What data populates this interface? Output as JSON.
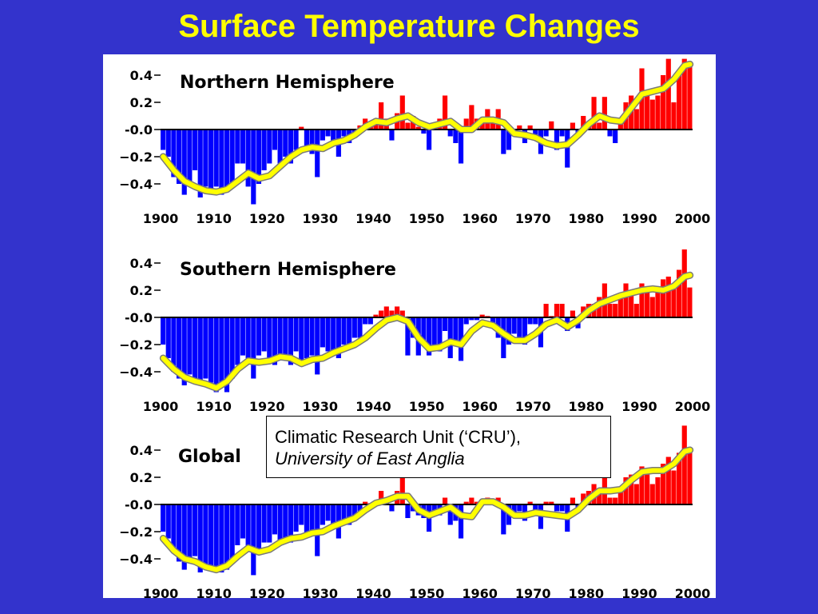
{
  "slide": {
    "title": "Surface Temperature Changes",
    "background_color": "#3333cc",
    "title_color": "#ffff00"
  },
  "credit": {
    "line1": "Climatic Research Unit (‘CRU’),",
    "line2": "University of East Anglia"
  },
  "colors": {
    "positive_bar": "#ff0000",
    "negative_bar": "#0000ff",
    "smooth_line": "#ffff00",
    "smooth_line_outline": "#7a7a7a"
  },
  "chart_data": [
    {
      "type": "bar",
      "title": "Northern Hemisphere",
      "xlabel": "",
      "ylabel": "",
      "xlim": [
        1900,
        2000
      ],
      "ylim": [
        -0.55,
        0.55
      ],
      "x_ticks": [
        "1900",
        "1910",
        "1920",
        "1930",
        "1940",
        "1950",
        "1960",
        "1970",
        "1980",
        "1990",
        "2000"
      ],
      "y_ticks": [
        "0.4",
        "0.2",
        "-0.0",
        "−0.2",
        "−0.4"
      ],
      "y_tick_values": [
        0.4,
        0.2,
        0.0,
        -0.2,
        -0.4
      ],
      "bars": {
        "years": [
          1900,
          1901,
          1902,
          1903,
          1904,
          1905,
          1906,
          1907,
          1908,
          1909,
          1910,
          1911,
          1912,
          1913,
          1914,
          1915,
          1916,
          1917,
          1918,
          1919,
          1920,
          1921,
          1922,
          1923,
          1924,
          1925,
          1926,
          1927,
          1928,
          1929,
          1930,
          1931,
          1932,
          1933,
          1934,
          1935,
          1936,
          1937,
          1938,
          1939,
          1940,
          1941,
          1942,
          1943,
          1944,
          1945,
          1946,
          1947,
          1948,
          1949,
          1950,
          1951,
          1952,
          1953,
          1954,
          1955,
          1956,
          1957,
          1958,
          1959,
          1960,
          1961,
          1962,
          1963,
          1964,
          1965,
          1966,
          1967,
          1968,
          1969,
          1970,
          1971,
          1972,
          1973,
          1974,
          1975,
          1976,
          1977,
          1978,
          1979,
          1980,
          1981,
          1982,
          1983,
          1984,
          1985,
          1986,
          1987,
          1988,
          1989,
          1990,
          1991,
          1992,
          1993,
          1994,
          1995,
          1996,
          1997,
          1998,
          1999
        ],
        "values": [
          -0.15,
          -0.2,
          -0.35,
          -0.4,
          -0.48,
          -0.4,
          -0.3,
          -0.5,
          -0.42,
          -0.45,
          -0.42,
          -0.48,
          -0.45,
          -0.4,
          -0.25,
          -0.25,
          -0.42,
          -0.55,
          -0.4,
          -0.3,
          -0.25,
          -0.15,
          -0.25,
          -0.2,
          -0.25,
          -0.15,
          0.02,
          -0.15,
          -0.18,
          -0.35,
          -0.08,
          -0.05,
          -0.08,
          -0.2,
          -0.05,
          -0.1,
          -0.05,
          0.03,
          0.08,
          0.05,
          0.08,
          0.2,
          0.08,
          -0.08,
          0.12,
          0.25,
          0.05,
          0.1,
          0.02,
          -0.03,
          -0.15,
          0.05,
          0.08,
          0.25,
          -0.05,
          -0.1,
          -0.25,
          0.08,
          0.18,
          0.08,
          0.05,
          0.15,
          0.05,
          0.15,
          -0.18,
          -0.15,
          -0.05,
          0.03,
          -0.1,
          0.03,
          -0.08,
          -0.18,
          -0.05,
          0.06,
          -0.15,
          -0.05,
          -0.28,
          0.05,
          -0.05,
          0.1,
          0.05,
          0.24,
          0.05,
          0.24,
          -0.05,
          -0.1,
          0.05,
          0.2,
          0.25,
          0.15,
          0.45,
          0.25,
          0.22,
          0.25,
          0.4,
          0.52,
          0.2,
          0.42,
          0.52,
          0.5
        ]
      },
      "smooth": {
        "years": [
          1900,
          1902,
          1904,
          1906,
          1908,
          1910,
          1912,
          1914,
          1916,
          1918,
          1920,
          1922,
          1924,
          1926,
          1928,
          1930,
          1932,
          1934,
          1936,
          1938,
          1940,
          1942,
          1944,
          1946,
          1948,
          1950,
          1952,
          1954,
          1956,
          1958,
          1960,
          1962,
          1964,
          1966,
          1968,
          1970,
          1972,
          1974,
          1976,
          1978,
          1980,
          1982,
          1984,
          1986,
          1988,
          1990,
          1992,
          1994,
          1996,
          1998,
          1999
        ],
        "values": [
          -0.2,
          -0.3,
          -0.38,
          -0.42,
          -0.45,
          -0.46,
          -0.44,
          -0.38,
          -0.32,
          -0.36,
          -0.34,
          -0.27,
          -0.2,
          -0.15,
          -0.13,
          -0.14,
          -0.1,
          -0.08,
          -0.04,
          0.02,
          0.06,
          0.05,
          0.08,
          0.1,
          0.05,
          0.02,
          0.04,
          0.06,
          0.0,
          0.0,
          0.07,
          0.07,
          0.05,
          -0.03,
          -0.04,
          -0.06,
          -0.1,
          -0.12,
          -0.11,
          -0.04,
          0.04,
          0.1,
          0.07,
          0.06,
          0.16,
          0.26,
          0.28,
          0.3,
          0.37,
          0.47,
          0.48
        ]
      }
    },
    {
      "type": "bar",
      "title": "Southern Hemisphere",
      "xlabel": "",
      "ylabel": "",
      "xlim": [
        1900,
        2000
      ],
      "ylim": [
        -0.55,
        0.55
      ],
      "x_ticks": [
        "1900",
        "1910",
        "1920",
        "1930",
        "1940",
        "1950",
        "1960",
        "1970",
        "1980",
        "1990",
        "2000"
      ],
      "y_ticks": [
        "0.4",
        "0.2",
        "-0.0",
        "−0.2",
        "−0.4"
      ],
      "y_tick_values": [
        0.4,
        0.2,
        0.0,
        -0.2,
        -0.4
      ],
      "bars": {
        "years": [
          1900,
          1901,
          1902,
          1903,
          1904,
          1905,
          1906,
          1907,
          1908,
          1909,
          1910,
          1911,
          1912,
          1913,
          1914,
          1915,
          1916,
          1917,
          1918,
          1919,
          1920,
          1921,
          1922,
          1923,
          1924,
          1925,
          1926,
          1927,
          1928,
          1929,
          1930,
          1931,
          1932,
          1933,
          1934,
          1935,
          1936,
          1937,
          1938,
          1939,
          1940,
          1941,
          1942,
          1943,
          1944,
          1945,
          1946,
          1947,
          1948,
          1949,
          1950,
          1951,
          1952,
          1953,
          1954,
          1955,
          1956,
          1957,
          1958,
          1959,
          1960,
          1961,
          1962,
          1963,
          1964,
          1965,
          1966,
          1967,
          1968,
          1969,
          1970,
          1971,
          1972,
          1973,
          1974,
          1975,
          1976,
          1977,
          1978,
          1979,
          1980,
          1981,
          1982,
          1983,
          1984,
          1985,
          1986,
          1987,
          1988,
          1989,
          1990,
          1991,
          1992,
          1993,
          1994,
          1995,
          1996,
          1997,
          1998,
          1999
        ],
        "values": [
          -0.2,
          -0.3,
          -0.4,
          -0.45,
          -0.5,
          -0.42,
          -0.48,
          -0.5,
          -0.45,
          -0.48,
          -0.55,
          -0.5,
          -0.55,
          -0.45,
          -0.35,
          -0.28,
          -0.3,
          -0.45,
          -0.28,
          -0.25,
          -0.3,
          -0.35,
          -0.3,
          -0.28,
          -0.35,
          -0.25,
          -0.35,
          -0.3,
          -0.28,
          -0.42,
          -0.22,
          -0.25,
          -0.28,
          -0.3,
          -0.2,
          -0.2,
          -0.15,
          -0.15,
          -0.05,
          -0.05,
          0.02,
          0.05,
          0.08,
          0.05,
          0.08,
          0.05,
          -0.28,
          -0.15,
          -0.28,
          -0.2,
          -0.28,
          -0.2,
          -0.25,
          -0.1,
          -0.3,
          -0.2,
          -0.32,
          -0.05,
          -0.02,
          -0.02,
          0.02,
          0.01,
          -0.05,
          -0.15,
          -0.3,
          -0.2,
          -0.12,
          -0.15,
          -0.2,
          -0.05,
          -0.05,
          -0.22,
          0.1,
          0.01,
          0.1,
          0.1,
          -0.1,
          0.05,
          -0.08,
          0.08,
          0.1,
          0.1,
          0.15,
          0.25,
          0.1,
          0.1,
          0.15,
          0.25,
          0.2,
          0.1,
          0.25,
          0.2,
          0.15,
          0.2,
          0.28,
          0.3,
          0.25,
          0.35,
          0.5,
          0.22
        ]
      },
      "smooth": {
        "years": [
          1900,
          1902,
          1904,
          1906,
          1908,
          1910,
          1912,
          1914,
          1916,
          1918,
          1920,
          1922,
          1924,
          1926,
          1928,
          1930,
          1932,
          1934,
          1936,
          1938,
          1940,
          1942,
          1944,
          1946,
          1948,
          1950,
          1952,
          1954,
          1956,
          1958,
          1960,
          1962,
          1964,
          1966,
          1968,
          1970,
          1972,
          1974,
          1976,
          1978,
          1980,
          1982,
          1984,
          1986,
          1988,
          1990,
          1992,
          1994,
          1996,
          1998,
          1999
        ],
        "values": [
          -0.3,
          -0.38,
          -0.44,
          -0.47,
          -0.49,
          -0.52,
          -0.47,
          -0.38,
          -0.32,
          -0.33,
          -0.32,
          -0.29,
          -0.3,
          -0.34,
          -0.31,
          -0.3,
          -0.26,
          -0.23,
          -0.2,
          -0.15,
          -0.08,
          -0.02,
          0.0,
          -0.03,
          -0.15,
          -0.23,
          -0.22,
          -0.18,
          -0.2,
          -0.1,
          -0.04,
          -0.06,
          -0.12,
          -0.17,
          -0.17,
          -0.12,
          -0.05,
          -0.02,
          -0.07,
          -0.02,
          0.05,
          0.1,
          0.13,
          0.16,
          0.18,
          0.2,
          0.21,
          0.2,
          0.23,
          0.3,
          0.31
        ]
      }
    },
    {
      "type": "bar",
      "title": "Global",
      "xlabel": "",
      "ylabel": "",
      "xlim": [
        1900,
        2000
      ],
      "ylim": [
        -0.55,
        0.55
      ],
      "x_ticks": [
        "1900",
        "1910",
        "1920",
        "1930",
        "1940",
        "1950",
        "1960",
        "1970",
        "1980",
        "1990",
        "2000"
      ],
      "y_ticks": [
        "0.4",
        "0.2",
        "-0.0",
        "−0.2",
        "−0.4"
      ],
      "y_tick_values": [
        0.4,
        0.2,
        0.0,
        -0.2,
        -0.4
      ],
      "bars": {
        "years": [
          1900,
          1901,
          1902,
          1903,
          1904,
          1905,
          1906,
          1907,
          1908,
          1909,
          1910,
          1911,
          1912,
          1913,
          1914,
          1915,
          1916,
          1917,
          1918,
          1919,
          1920,
          1921,
          1922,
          1923,
          1924,
          1925,
          1926,
          1927,
          1928,
          1929,
          1930,
          1931,
          1932,
          1933,
          1934,
          1935,
          1936,
          1937,
          1938,
          1939,
          1940,
          1941,
          1942,
          1943,
          1944,
          1945,
          1946,
          1947,
          1948,
          1949,
          1950,
          1951,
          1952,
          1953,
          1954,
          1955,
          1956,
          1957,
          1958,
          1959,
          1960,
          1961,
          1962,
          1963,
          1964,
          1965,
          1966,
          1967,
          1968,
          1969,
          1970,
          1971,
          1972,
          1973,
          1974,
          1975,
          1976,
          1977,
          1978,
          1979,
          1980,
          1981,
          1982,
          1983,
          1984,
          1985,
          1986,
          1987,
          1988,
          1989,
          1990,
          1991,
          1992,
          1993,
          1994,
          1995,
          1996,
          1997,
          1998,
          1999
        ],
        "values": [
          -0.2,
          -0.25,
          -0.35,
          -0.42,
          -0.48,
          -0.4,
          -0.38,
          -0.5,
          -0.45,
          -0.48,
          -0.48,
          -0.5,
          -0.48,
          -0.42,
          -0.3,
          -0.25,
          -0.35,
          -0.52,
          -0.35,
          -0.28,
          -0.28,
          -0.22,
          -0.28,
          -0.25,
          -0.28,
          -0.2,
          -0.15,
          -0.22,
          -0.22,
          -0.38,
          -0.15,
          -0.12,
          -0.15,
          -0.25,
          -0.12,
          -0.15,
          -0.1,
          -0.05,
          0.02,
          0.01,
          0.02,
          0.1,
          0.05,
          -0.05,
          0.1,
          0.22,
          -0.1,
          -0.05,
          -0.08,
          -0.1,
          -0.2,
          -0.05,
          -0.08,
          0.05,
          -0.15,
          -0.12,
          -0.25,
          0.02,
          0.05,
          0.02,
          0.02,
          0.05,
          0.02,
          0.05,
          -0.22,
          -0.15,
          -0.08,
          -0.05,
          -0.12,
          0.02,
          -0.05,
          -0.18,
          0.02,
          0.02,
          -0.05,
          -0.05,
          -0.2,
          0.05,
          -0.02,
          0.08,
          0.1,
          0.15,
          0.08,
          0.2,
          0.05,
          0.05,
          0.1,
          0.2,
          0.22,
          0.15,
          0.28,
          0.22,
          0.15,
          0.2,
          0.3,
          0.35,
          0.25,
          0.38,
          0.58,
          0.38
        ]
      },
      "smooth": {
        "years": [
          1900,
          1902,
          1904,
          1906,
          1908,
          1910,
          1912,
          1914,
          1916,
          1918,
          1920,
          1922,
          1924,
          1926,
          1928,
          1930,
          1932,
          1934,
          1936,
          1938,
          1940,
          1942,
          1944,
          1946,
          1948,
          1950,
          1952,
          1954,
          1956,
          1958,
          1960,
          1962,
          1964,
          1966,
          1968,
          1970,
          1972,
          1974,
          1976,
          1978,
          1980,
          1982,
          1984,
          1986,
          1988,
          1990,
          1992,
          1994,
          1996,
          1998,
          1999
        ],
        "values": [
          -0.25,
          -0.34,
          -0.4,
          -0.42,
          -0.46,
          -0.48,
          -0.45,
          -0.38,
          -0.32,
          -0.35,
          -0.33,
          -0.28,
          -0.25,
          -0.24,
          -0.21,
          -0.2,
          -0.16,
          -0.13,
          -0.1,
          -0.04,
          0.01,
          0.03,
          0.06,
          0.06,
          -0.04,
          -0.08,
          -0.05,
          -0.02,
          -0.08,
          -0.09,
          0.02,
          0.02,
          -0.02,
          -0.08,
          -0.08,
          -0.06,
          -0.07,
          -0.08,
          -0.09,
          -0.04,
          0.04,
          0.1,
          0.1,
          0.11,
          0.18,
          0.24,
          0.25,
          0.25,
          0.3,
          0.39,
          0.4
        ]
      }
    }
  ]
}
